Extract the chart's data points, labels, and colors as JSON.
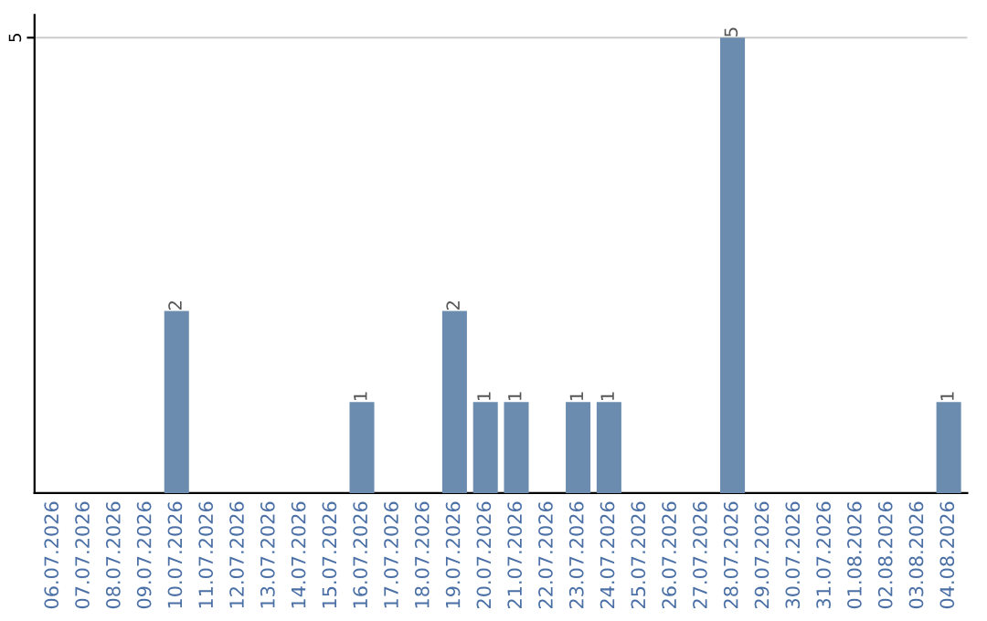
{
  "chart_data": {
    "type": "bar",
    "categories": [
      "06.07.2026",
      "07.07.2026",
      "08.07.2026",
      "09.07.2026",
      "10.07.2026",
      "11.07.2026",
      "12.07.2026",
      "13.07.2026",
      "14.07.2026",
      "15.07.2026",
      "16.07.2026",
      "17.07.2026",
      "18.07.2026",
      "19.07.2026",
      "20.07.2026",
      "21.07.2026",
      "22.07.2026",
      "23.07.2026",
      "24.07.2026",
      "25.07.2026",
      "26.07.2026",
      "27.07.2026",
      "28.07.2026",
      "29.07.2026",
      "30.07.2026",
      "31.07.2026",
      "01.08.2026",
      "02.08.2026",
      "03.08.2026",
      "04.08.2026"
    ],
    "values": [
      0,
      0,
      0,
      0,
      2,
      0,
      0,
      0,
      0,
      0,
      1,
      0,
      0,
      2,
      1,
      1,
      0,
      1,
      1,
      0,
      0,
      0,
      5,
      0,
      0,
      0,
      0,
      0,
      0,
      1
    ],
    "value_labels": [
      null,
      null,
      null,
      null,
      "2",
      null,
      null,
      null,
      null,
      null,
      "1",
      null,
      null,
      "2",
      "1",
      "1",
      null,
      "1",
      "1",
      null,
      null,
      null,
      "5",
      null,
      null,
      null,
      null,
      null,
      null,
      "1"
    ],
    "color": "#6b8cae",
    "ylim": [
      0,
      5.25
    ],
    "yticks": [
      5
    ],
    "grid": "y"
  }
}
